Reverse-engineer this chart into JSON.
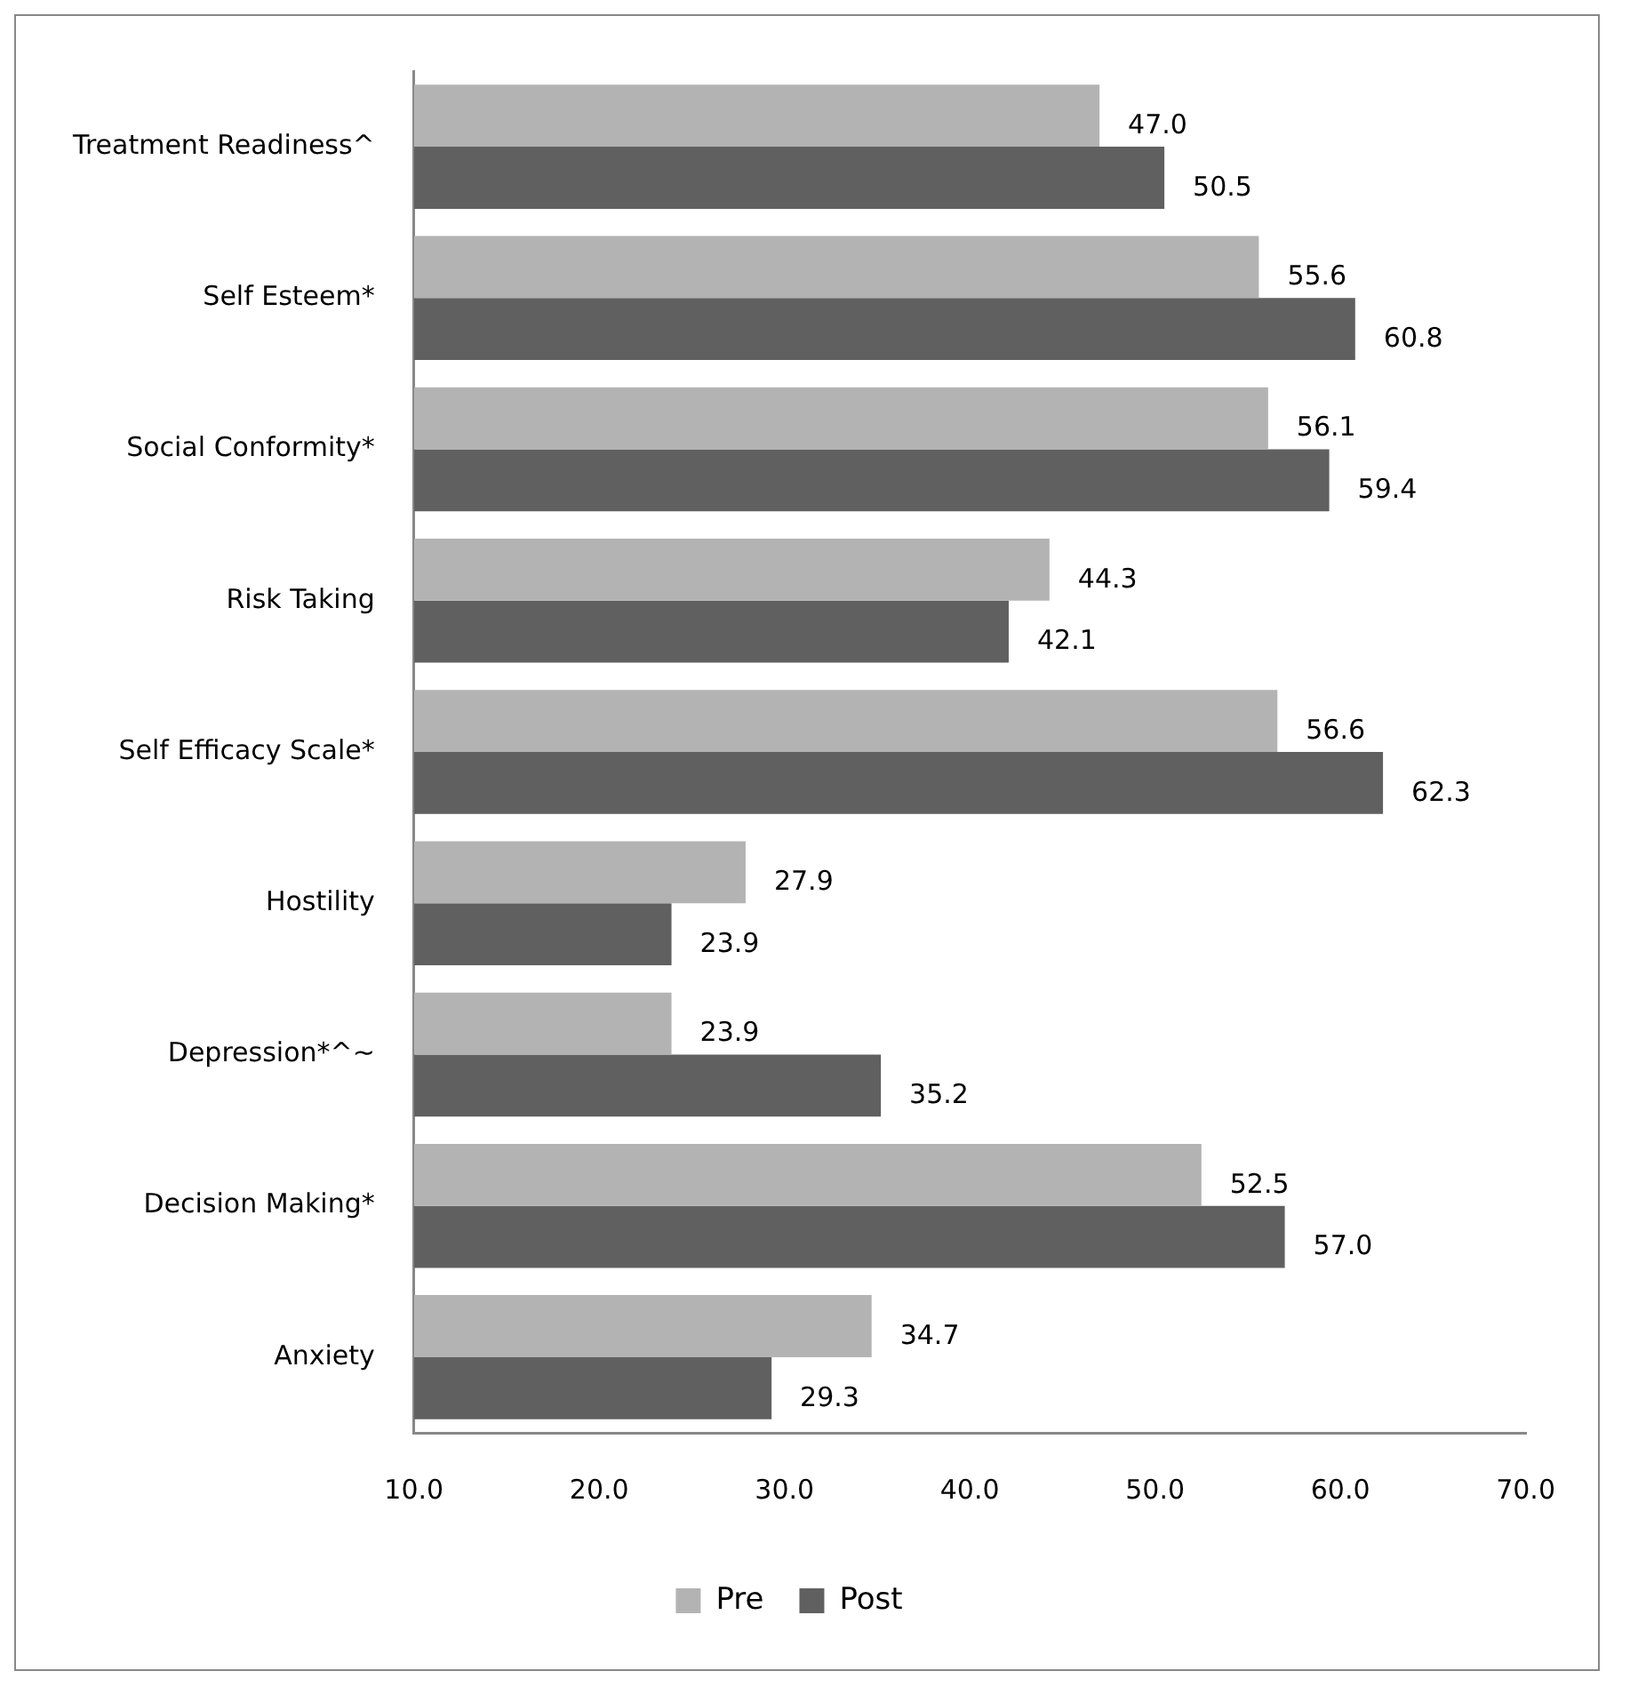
{
  "chart_data": {
    "type": "bar",
    "orientation": "horizontal",
    "categories": [
      "Treatment Readiness^",
      "Self Esteem*",
      "Social Conformity*",
      "Risk Taking",
      "Self Efficacy Scale*",
      "Hostility",
      "Depression*^~",
      "Decision Making*",
      "Anxiety"
    ],
    "series": [
      {
        "name": "Pre",
        "color": "#b3b3b3",
        "values": [
          47.0,
          55.6,
          56.1,
          44.3,
          56.6,
          27.9,
          23.9,
          52.5,
          34.7
        ],
        "value_labels": [
          "47.0",
          "55.6",
          "56.1",
          "44.3",
          "56.6",
          "27.9",
          "23.9",
          "52.5",
          "34.7"
        ]
      },
      {
        "name": "Post",
        "color": "#606060",
        "values": [
          50.5,
          60.8,
          59.4,
          42.1,
          62.3,
          23.9,
          35.2,
          57.0,
          29.3
        ],
        "value_labels": [
          "50.5",
          "60.8",
          "59.4",
          "42.1",
          "62.3",
          "23.9",
          "35.2",
          "57.0",
          "29.3"
        ]
      }
    ],
    "xlim": [
      10,
      70
    ],
    "xticks": [
      {
        "value": 10,
        "label": "10.0"
      },
      {
        "value": 20,
        "label": "20.0"
      },
      {
        "value": 30,
        "label": "30.0"
      },
      {
        "value": 40,
        "label": "40.0"
      },
      {
        "value": 50,
        "label": "50.0"
      },
      {
        "value": 60,
        "label": "60.0"
      },
      {
        "value": 70,
        "label": "70.0"
      }
    ],
    "grid": false,
    "legend": "bottom"
  }
}
